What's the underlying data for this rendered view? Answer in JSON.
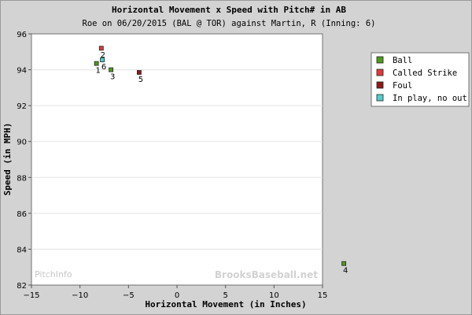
{
  "chart_data": {
    "type": "scatter",
    "title": "Horizontal Movement x Speed with Pitch# in AB",
    "subtitle": "Roe on 06/20/2015 (BAL @ TOR) against Martin, R (Inning: 6)",
    "xlabel": "Horizontal Movement (in Inches)",
    "ylabel": "Speed (in MPH)",
    "xlim": [
      -15,
      15
    ],
    "ylim": [
      82,
      96
    ],
    "xticks": [
      -15,
      -10,
      -5,
      0,
      5,
      10,
      15
    ],
    "yticks": [
      82,
      84,
      86,
      88,
      90,
      92,
      94,
      96
    ],
    "grid": "horizontal",
    "legend_position": "top-right",
    "series": [
      {
        "name": "Ball",
        "color": "#4f9a1e",
        "points": [
          {
            "x": -8.3,
            "y": 94.35,
            "label": "1"
          },
          {
            "x": -6.8,
            "y": 94.0,
            "label": "3"
          },
          {
            "x": 17.2,
            "y": 83.2,
            "label": "4"
          }
        ]
      },
      {
        "name": "Called Strike",
        "color": "#e23a3a",
        "points": [
          {
            "x": -7.8,
            "y": 95.2,
            "label": "2"
          }
        ]
      },
      {
        "name": "Foul",
        "color": "#8c1a1a",
        "points": [
          {
            "x": -3.9,
            "y": 93.85,
            "label": "5"
          }
        ]
      },
      {
        "name": "In play, no out",
        "color": "#55cccc",
        "points": [
          {
            "x": -7.7,
            "y": 94.55,
            "label": "6"
          }
        ]
      }
    ]
  },
  "watermarks": {
    "left": "PitchInfo",
    "right": "BrooksBaseball.net"
  }
}
